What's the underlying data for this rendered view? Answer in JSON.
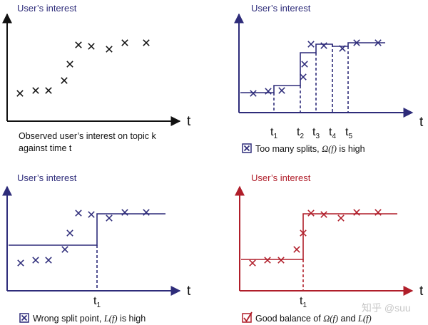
{
  "panels": {
    "observed": {
      "ylabel": "User’s interest",
      "xlabel": "t",
      "caption_line1": "Observed user’s interest on topic k",
      "caption_line2": "against time t"
    },
    "too_many": {
      "ylabel": "User’s interest",
      "xlabel": "t",
      "ticks": [
        "t",
        "t",
        "t",
        "t",
        "t"
      ],
      "tick_subs": [
        "1",
        "2",
        "3",
        "4",
        "5"
      ],
      "caption_pre": "Too many splits, ",
      "caption_math": "Ω(f)",
      "caption_post": " is high"
    },
    "wrong": {
      "ylabel": "User’s interest",
      "xlabel": "t",
      "tick": "t",
      "tick_sub": "1",
      "caption_pre": "Wrong split point, ",
      "caption_math": "L(f)",
      "caption_post": " is high"
    },
    "good": {
      "ylabel": "User’s interest",
      "xlabel": "t",
      "tick": "t",
      "tick_sub": "1",
      "caption_pre": "Good balance of ",
      "caption_math1": "Ω(f)",
      "caption_mid": " and ",
      "caption_math2": "L(f)"
    }
  },
  "watermark": "知乎 @suu",
  "colors": {
    "black": "#111111",
    "navy": "#2e2c7a",
    "red": "#b01e2a",
    "ylabel": "#2e2c7a",
    "ylabel_red": "#b01e2a"
  }
}
